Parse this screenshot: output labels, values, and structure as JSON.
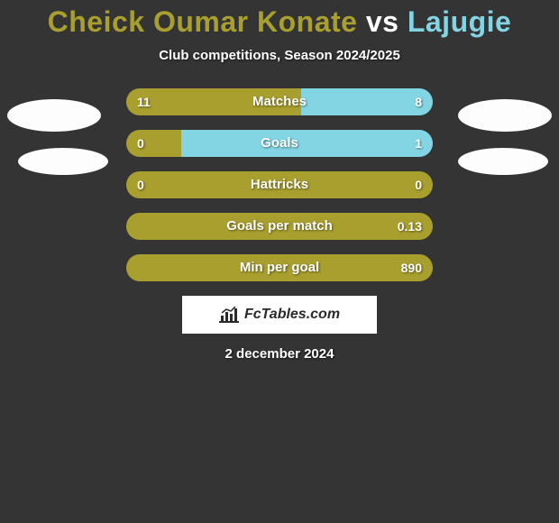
{
  "colors": {
    "background": "#343434",
    "player1": "#a89f2f",
    "player2": "#83d5e4",
    "text": "#ffffff",
    "avatar": "#fdfdfd",
    "branding_bg": "#ffffff",
    "branding_text": "#2a2a2a"
  },
  "title": {
    "player1": "Cheick Oumar Konate",
    "vs": "vs",
    "player2": "Lajugie",
    "fontsize": 32
  },
  "subtitle": "Club competitions, Season 2024/2025",
  "rows": [
    {
      "label": "Matches",
      "left": "11",
      "right": "8",
      "left_pct": 57,
      "right_pct": 43
    },
    {
      "label": "Goals",
      "left": "0",
      "right": "1",
      "left_pct": 18,
      "right_pct": 82
    },
    {
      "label": "Hattricks",
      "left": "0",
      "right": "0",
      "left_pct": 100,
      "right_pct": 0
    },
    {
      "label": "Goals per match",
      "left": "",
      "right": "0.13",
      "left_pct": 100,
      "right_pct": 0
    },
    {
      "label": "Min per goal",
      "left": "",
      "right": "890",
      "left_pct": 100,
      "right_pct": 0
    }
  ],
  "row_style": {
    "height": 30,
    "border_radius": 15,
    "gap": 16,
    "label_fontsize": 15,
    "value_fontsize": 14
  },
  "branding": "FcTables.com",
  "date": "2 december 2024"
}
